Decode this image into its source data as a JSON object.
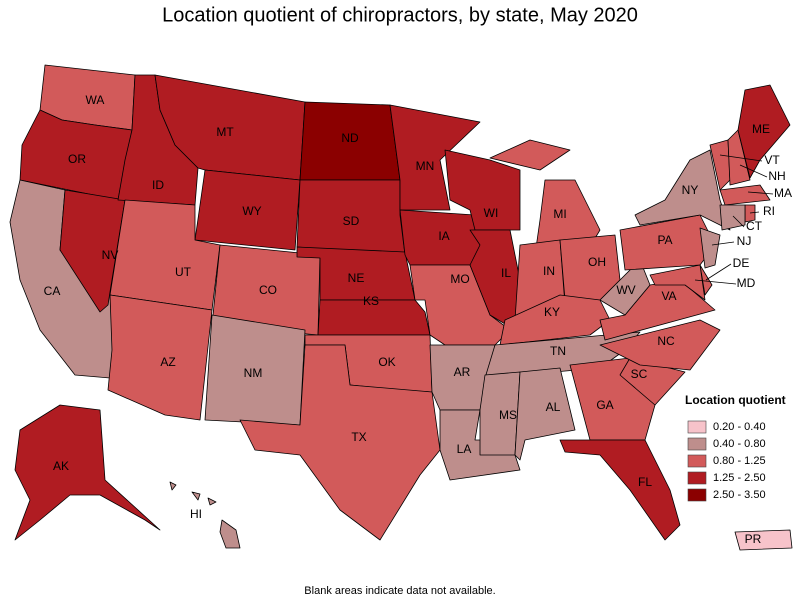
{
  "title": "Location quotient of chiropractors, by state, May 2020",
  "footnote": "Blank areas indicate data not available.",
  "legend": {
    "title": "Location quotient",
    "items": [
      {
        "label": "0.20 - 0.40",
        "color": "#f7c3ca"
      },
      {
        "label": "0.40 - 0.80",
        "color": "#be8e8c"
      },
      {
        "label": "0.80 - 1.25",
        "color": "#d25a5a"
      },
      {
        "label": "1.25 - 2.50",
        "color": "#b01c22"
      },
      {
        "label": "2.50 - 3.50",
        "color": "#8b0000"
      }
    ]
  },
  "states": [
    {
      "label": "WA",
      "color": "#d25a5a"
    },
    {
      "label": "OR",
      "color": "#b01c22"
    },
    {
      "label": "CA",
      "color": "#be8e8c"
    },
    {
      "label": "NV",
      "color": "#b01c22"
    },
    {
      "label": "ID",
      "color": "#b01c22"
    },
    {
      "label": "MT",
      "color": "#b01c22"
    },
    {
      "label": "WY",
      "color": "#b01c22"
    },
    {
      "label": "UT",
      "color": "#d25a5a"
    },
    {
      "label": "CO",
      "color": "#d25a5a"
    },
    {
      "label": "AZ",
      "color": "#d25a5a"
    },
    {
      "label": "NM",
      "color": "#be8e8c"
    },
    {
      "label": "ND",
      "color": "#8b0000"
    },
    {
      "label": "SD",
      "color": "#b01c22"
    },
    {
      "label": "NE",
      "color": "#b01c22"
    },
    {
      "label": "KS",
      "color": "#b01c22"
    },
    {
      "label": "OK",
      "color": "#d25a5a"
    },
    {
      "label": "TX",
      "color": "#d25a5a"
    },
    {
      "label": "MN",
      "color": "#b01c22"
    },
    {
      "label": "IA",
      "color": "#b01c22"
    },
    {
      "label": "MO",
      "color": "#d25a5a"
    },
    {
      "label": "AR",
      "color": "#be8e8c"
    },
    {
      "label": "LA",
      "color": "#be8e8c"
    },
    {
      "label": "WI",
      "color": "#b01c22"
    },
    {
      "label": "IL",
      "color": "#b01c22"
    },
    {
      "label": "MI",
      "color": "#d25a5a"
    },
    {
      "label": "IN",
      "color": "#d25a5a"
    },
    {
      "label": "OH",
      "color": "#d25a5a"
    },
    {
      "label": "KY",
      "color": "#d25a5a"
    },
    {
      "label": "TN",
      "color": "#be8e8c"
    },
    {
      "label": "MS",
      "color": "#be8e8c"
    },
    {
      "label": "AL",
      "color": "#be8e8c"
    },
    {
      "label": "GA",
      "color": "#d25a5a"
    },
    {
      "label": "FL",
      "color": "#b01c22"
    },
    {
      "label": "SC",
      "color": "#d25a5a"
    },
    {
      "label": "NC",
      "color": "#d25a5a"
    },
    {
      "label": "VA",
      "color": "#d25a5a"
    },
    {
      "label": "WV",
      "color": "#be8e8c"
    },
    {
      "label": "PA",
      "color": "#d25a5a"
    },
    {
      "label": "NY",
      "color": "#be8e8c"
    },
    {
      "label": "VT",
      "color": "#d25a5a"
    },
    {
      "label": "NH",
      "color": "#d25a5a"
    },
    {
      "label": "ME",
      "color": "#b01c22"
    },
    {
      "label": "MA",
      "color": "#d25a5a"
    },
    {
      "label": "RI",
      "color": "#d25a5a"
    },
    {
      "label": "CT",
      "color": "#be8e8c"
    },
    {
      "label": "NJ",
      "color": "#be8e8c"
    },
    {
      "label": "DE",
      "color": "#d25a5a"
    },
    {
      "label": "MD",
      "color": "#d25a5a"
    },
    {
      "label": "AK",
      "color": "#b01c22"
    },
    {
      "label": "HI",
      "color": "#be8e8c"
    },
    {
      "label": "PR",
      "color": "#f7c3ca"
    }
  ]
}
